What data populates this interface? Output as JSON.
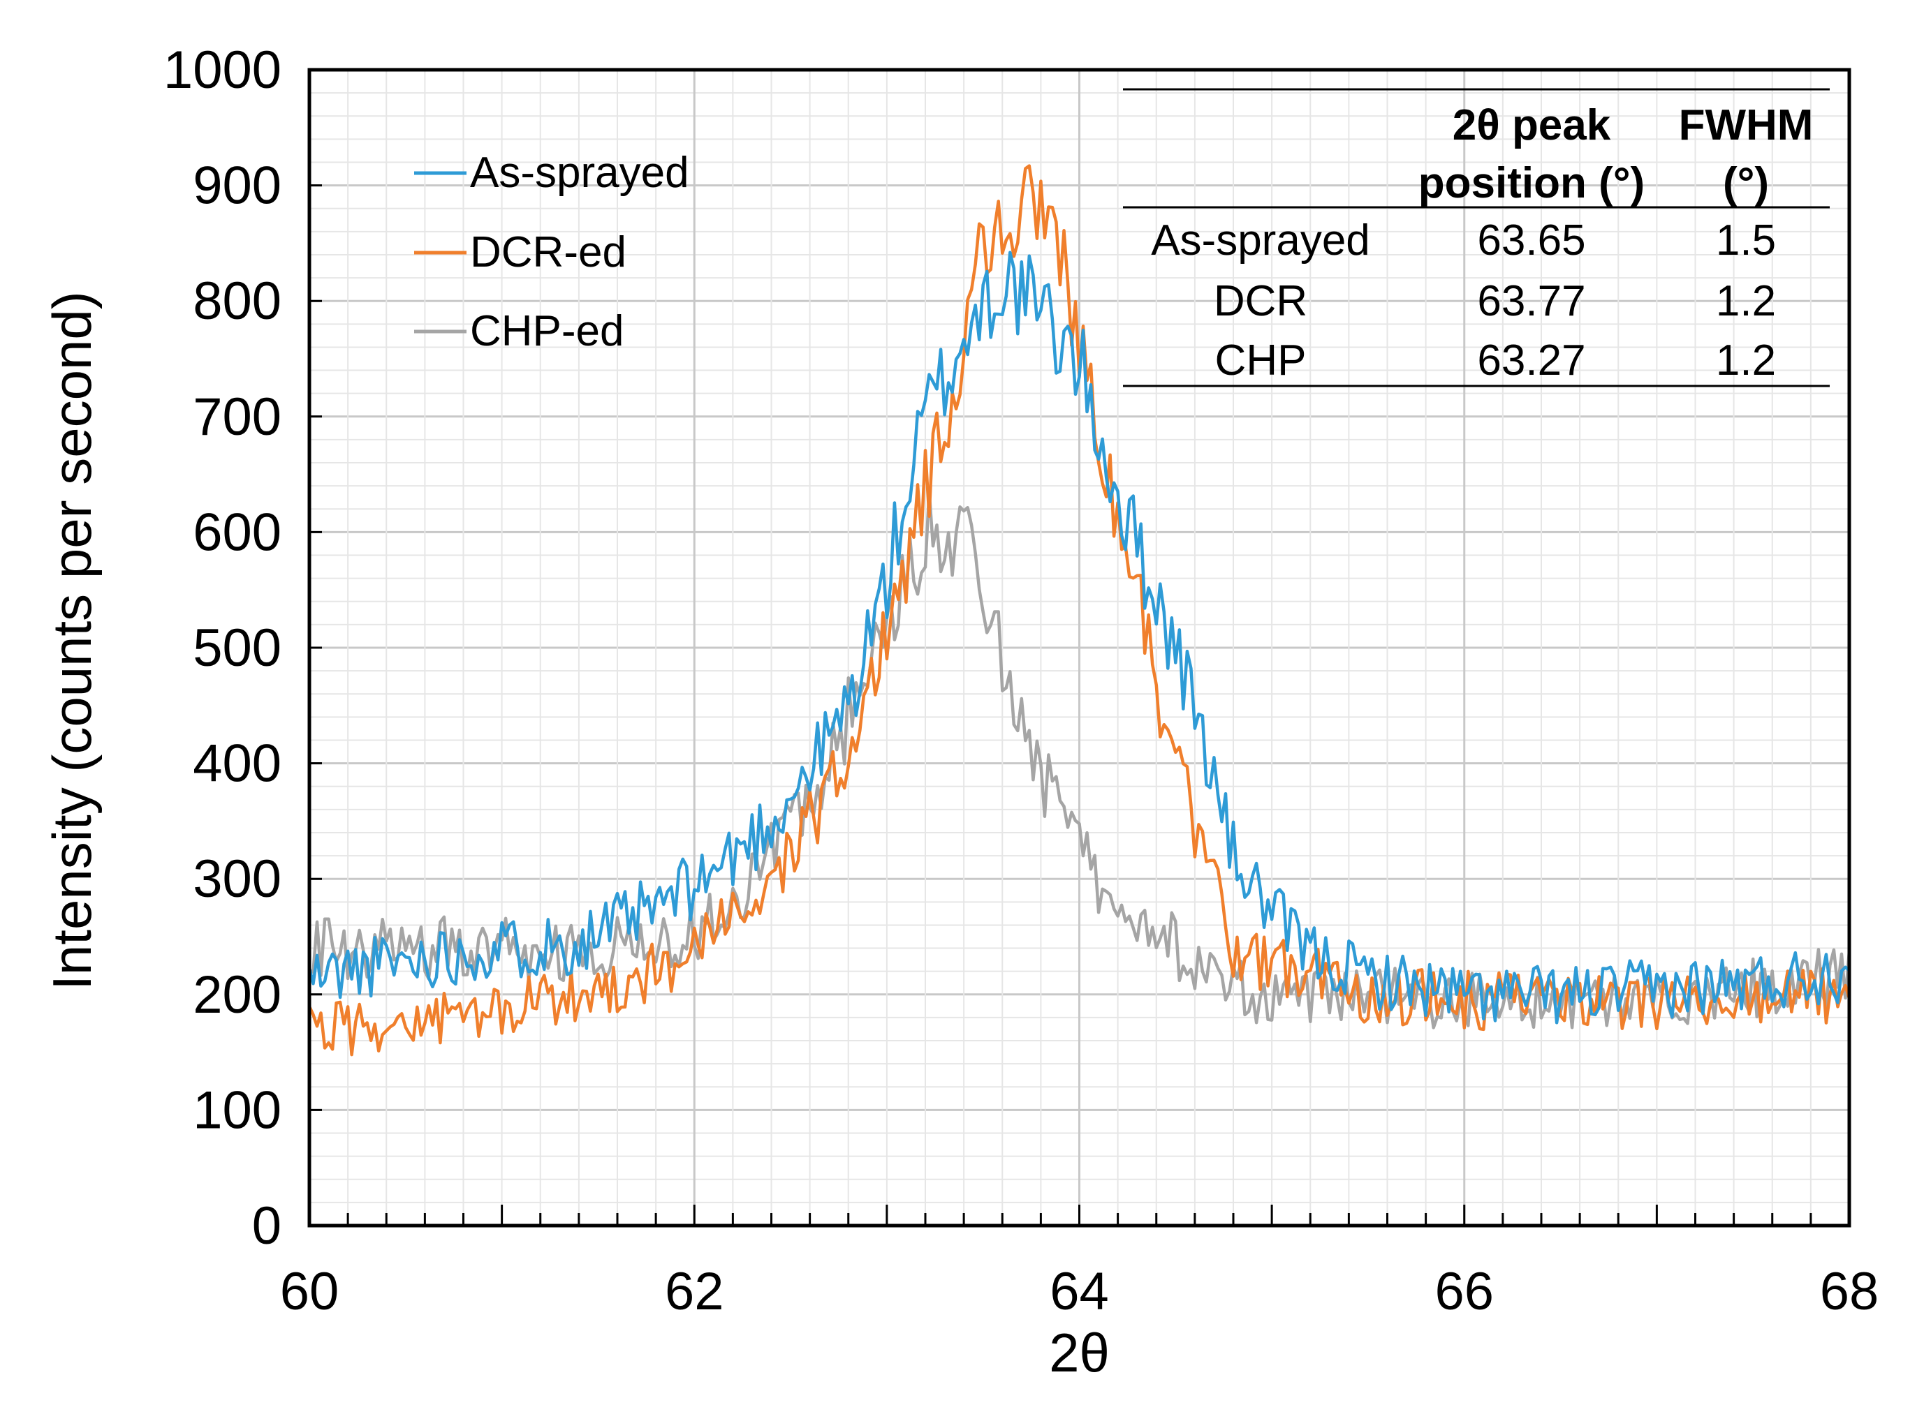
{
  "chart_data": {
    "type": "line",
    "xlabel": "2θ",
    "ylabel": "Intensity (counts per second)",
    "xlim": [
      60,
      68
    ],
    "ylim": [
      0,
      1000
    ],
    "x_ticks": [
      "60",
      "62",
      "64",
      "66",
      "68"
    ],
    "y_ticks": [
      "0",
      "100",
      "200",
      "300",
      "400",
      "500",
      "600",
      "700",
      "800",
      "900",
      "1000"
    ],
    "grid": true,
    "legend_position": "top-left",
    "series": [
      {
        "name": "As-sprayed",
        "color": "#2e9bd6",
        "x": [
          60.0,
          60.5,
          61.0,
          61.4,
          61.8,
          62.0,
          62.2,
          62.4,
          62.6,
          62.8,
          63.0,
          63.2,
          63.4,
          63.5,
          63.6,
          63.65,
          63.7,
          63.8,
          64.0,
          64.2,
          64.4,
          64.6,
          64.8,
          65.0,
          65.2,
          65.5,
          66.0,
          66.5,
          67.0,
          67.5,
          68.0
        ],
        "y": [
          215,
          230,
          240,
          245,
          275,
          295,
          320,
          350,
          395,
          450,
          560,
          700,
          765,
          800,
          815,
          815,
          805,
          790,
          745,
          630,
          545,
          450,
          320,
          270,
          235,
          215,
          200,
          200,
          205,
          210,
          220
        ]
      },
      {
        "name": "DCR-ed",
        "color": "#f07f2c",
        "x": [
          60.0,
          60.5,
          61.0,
          61.4,
          61.8,
          62.0,
          62.2,
          62.4,
          62.6,
          62.8,
          63.0,
          63.2,
          63.4,
          63.5,
          63.6,
          63.7,
          63.77,
          63.85,
          64.0,
          64.2,
          64.4,
          64.6,
          64.8,
          65.0,
          65.2,
          65.5,
          66.0,
          66.5,
          67.0,
          67.5,
          68.0
        ],
        "y": [
          170,
          175,
          185,
          200,
          220,
          235,
          265,
          300,
          345,
          410,
          510,
          640,
          760,
          850,
          870,
          875,
          880,
          860,
          770,
          620,
          470,
          340,
          240,
          225,
          215,
          200,
          195,
          195,
          190,
          195,
          200
        ]
      },
      {
        "name": "CHP-ed",
        "color": "#a5a5a5",
        "x": [
          60.0,
          60.5,
          61.0,
          61.4,
          61.8,
          62.0,
          62.2,
          62.4,
          62.6,
          62.8,
          63.0,
          63.1,
          63.2,
          63.27,
          63.35,
          63.45,
          63.55,
          63.7,
          63.9,
          64.1,
          64.3,
          64.5,
          64.7,
          64.9,
          65.2,
          65.5,
          66.0,
          66.5,
          67.0,
          67.5,
          68.0
        ],
        "y": [
          240,
          240,
          240,
          235,
          245,
          255,
          285,
          320,
          370,
          440,
          515,
          560,
          600,
          605,
          595,
          580,
          520,
          440,
          350,
          300,
          275,
          240,
          210,
          200,
          200,
          200,
          195,
          190,
          195,
          205,
          220
        ]
      }
    ],
    "annotation_table": {
      "headers": [
        {
          "line1": "",
          "line2": ""
        },
        {
          "line1": "2θ peak",
          "line2": "position (°)"
        },
        {
          "line1": "FWHM",
          "line2": "(°)"
        }
      ],
      "rows": [
        {
          "sample": "As-sprayed",
          "peak": "63.65",
          "fwhm": "1.5"
        },
        {
          "sample": "DCR",
          "peak": "63.77",
          "fwhm": "1.2"
        },
        {
          "sample": "CHP",
          "peak": "63.27",
          "fwhm": "1.2"
        }
      ]
    }
  }
}
